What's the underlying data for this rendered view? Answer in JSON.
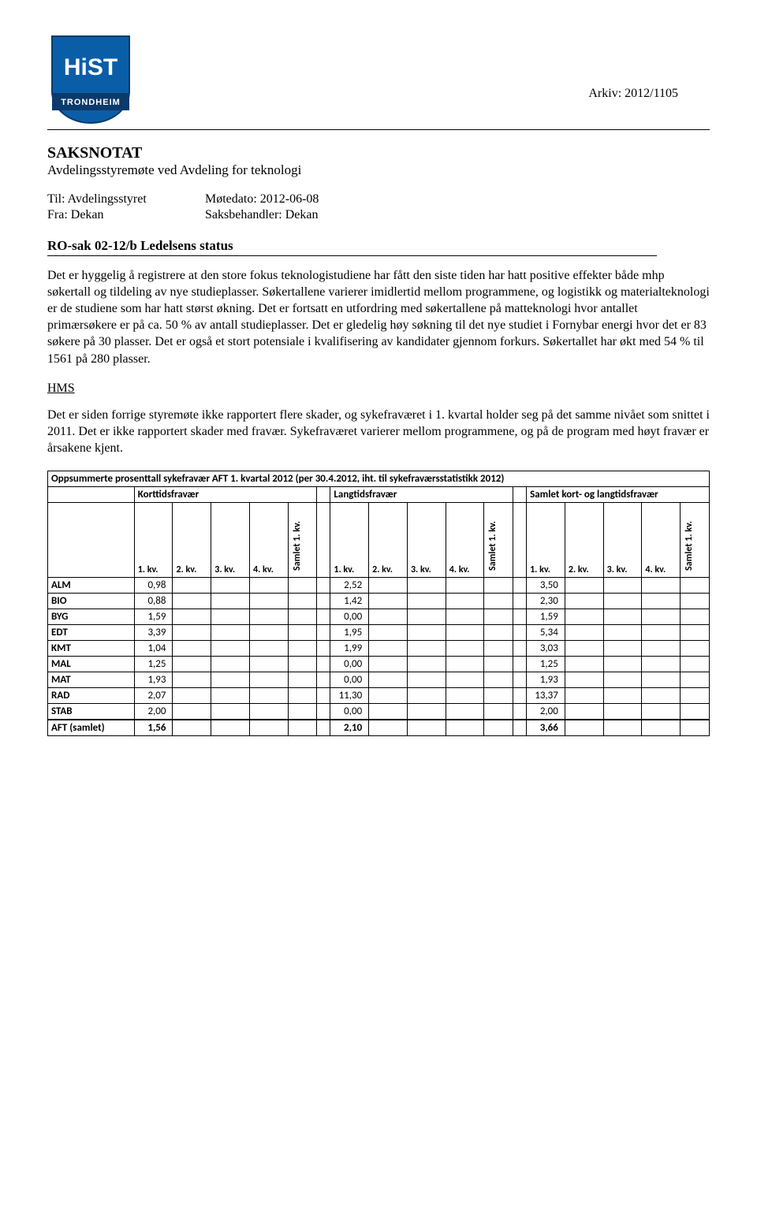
{
  "header": {
    "arkiv": "Arkiv: 2012/1105",
    "logo_text_top": "HiST",
    "logo_text_bottom": "TRONDHEIM"
  },
  "title": {
    "main": "SAKSNOTAT",
    "sub": "Avdelingsstyremøte ved Avdeling for teknologi"
  },
  "meta": {
    "til_label": "Til: Avdelingsstyret",
    "fra_label": "Fra: Dekan",
    "motedato_label": "Møtedato:  2012-06-08",
    "saksbehandler_label": "Saksbehandler: Dekan"
  },
  "ro_line": "RO-sak 02-12/b Ledelsens status",
  "para1": "Det er hyggelig å registrere at den store fokus teknologistudiene har fått den siste tiden har hatt positive effekter både mhp søkertall og tildeling av nye studieplasser. Søkertallene varierer imidlertid mellom programmene, og logistikk og materialteknologi er de studiene som har hatt størst økning. Det er fortsatt en utfordring med søkertallene på matteknologi hvor antallet primærsøkere er på ca. 50 % av antall studieplasser. Det er gledelig høy søkning til det nye studiet i Fornybar energi hvor det er 83 søkere på 30 plasser. Det er også et stort potensiale i kvalifisering av kandidater gjennom forkurs. Søkertallet har økt med 54 % til 1561 på 280 plasser.",
  "hms_heading": "HMS",
  "para2": "Det er siden forrige styremøte ikke rapportert flere skader, og sykefraværet i 1. kvartal holder seg på det samme nivået som snittet i 2011. Det er ikke rapportert skader med fravær. Sykefraværet varierer mellom programmene, og på de program med høyt fravær er årsakene kjent.",
  "table": {
    "title": "Oppsummerte prosenttall sykefravær AFT 1. kvartal 2012 (per 30.4.2012, iht. til sykefraværsstatistikk 2012)",
    "groups": [
      "Korttidsfravær",
      "Langtidsfravær",
      "Samlet kort- og langtidsfravær"
    ],
    "subcols": [
      "1. kv.",
      "2. kv.",
      "3. kv.",
      "4. kv."
    ],
    "samlet_label": "Samlet 1. kv.",
    "rows": [
      {
        "label": "ALM",
        "kort": "0,98",
        "lang": "2,52",
        "sam": "3,50"
      },
      {
        "label": "BIO",
        "kort": "0,88",
        "lang": "1,42",
        "sam": "2,30"
      },
      {
        "label": "BYG",
        "kort": "1,59",
        "lang": "0,00",
        "sam": "1,59"
      },
      {
        "label": "EDT",
        "kort": "3,39",
        "lang": "1,95",
        "sam": "5,34"
      },
      {
        "label": "KMT",
        "kort": "1,04",
        "lang": "1,99",
        "sam": "3,03"
      },
      {
        "label": "MAL",
        "kort": "1,25",
        "lang": "0,00",
        "sam": "1,25"
      },
      {
        "label": "MAT",
        "kort": "1,93",
        "lang": "0,00",
        "sam": "1,93"
      },
      {
        "label": "RAD",
        "kort": "2,07",
        "lang": "11,30",
        "sam": "13,37"
      },
      {
        "label": "STAB",
        "kort": "2,00",
        "lang": "0,00",
        "sam": "2,00"
      }
    ],
    "total": {
      "label": "AFT (samlet)",
      "kort": "1,56",
      "lang": "2,10",
      "sam": "3,66"
    }
  },
  "colors": {
    "logo_blue": "#0a5ea8",
    "logo_dark": "#0b3a6b"
  }
}
